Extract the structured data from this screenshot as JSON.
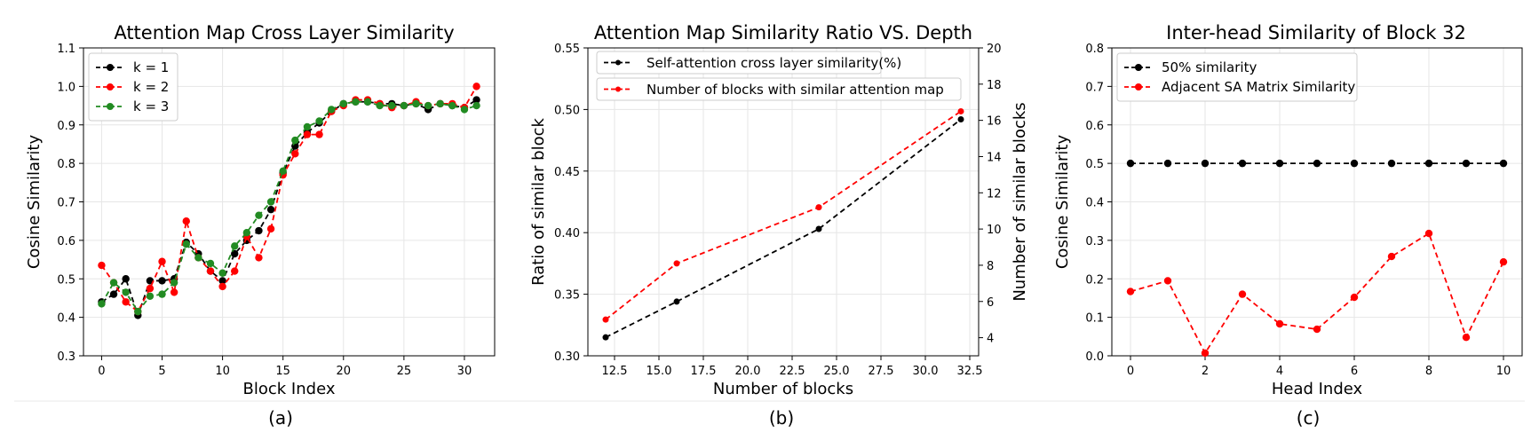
{
  "chart_data": [
    {
      "type": "line",
      "panel_label": "(a)",
      "title": "Attention Map Cross Layer Similarity",
      "xlabel": "Block Index",
      "ylabel": "Cosine Similarity",
      "xlim": [
        -1.5,
        32.5
      ],
      "ylim": [
        0.3,
        1.1
      ],
      "xticks": [
        0,
        5,
        10,
        15,
        20,
        25,
        30
      ],
      "yticks": [
        0.3,
        0.4,
        0.5,
        0.6,
        0.7,
        0.8,
        0.9,
        1.0,
        1.1
      ],
      "grid": true,
      "legend_position": "upper-left",
      "x": [
        0,
        1,
        2,
        3,
        4,
        5,
        6,
        7,
        8,
        9,
        10,
        11,
        12,
        13,
        14,
        15,
        16,
        17,
        18,
        19,
        20,
        21,
        22,
        23,
        24,
        25,
        26,
        27,
        28,
        29,
        30,
        31
      ],
      "series": [
        {
          "name": "k = 1",
          "color": "#000000",
          "values": [
            0.44,
            0.46,
            0.5,
            0.405,
            0.495,
            0.495,
            0.5,
            0.595,
            0.565,
            0.52,
            0.495,
            0.565,
            0.6,
            0.625,
            0.68,
            0.775,
            0.845,
            0.88,
            0.905,
            0.935,
            0.955,
            0.96,
            0.96,
            0.955,
            0.955,
            0.95,
            0.955,
            0.94,
            0.955,
            0.95,
            0.945,
            0.965
          ]
        },
        {
          "name": "k = 2",
          "color": "#ff0000",
          "values": [
            0.535,
            0.49,
            0.44,
            0.415,
            0.475,
            0.545,
            0.465,
            0.65,
            0.555,
            0.52,
            0.48,
            0.52,
            0.61,
            0.555,
            0.63,
            0.77,
            0.825,
            0.875,
            0.875,
            0.935,
            0.95,
            0.965,
            0.965,
            0.955,
            0.945,
            0.95,
            0.96,
            0.95,
            0.955,
            0.955,
            0.945,
            1.0
          ]
        },
        {
          "name": "k = 3",
          "color": "#228b22",
          "values": [
            0.435,
            0.49,
            0.465,
            0.415,
            0.455,
            0.46,
            0.49,
            0.59,
            0.555,
            0.54,
            0.515,
            0.585,
            0.62,
            0.665,
            0.7,
            0.78,
            0.86,
            0.895,
            0.91,
            0.94,
            0.955,
            0.96,
            0.96,
            0.95,
            0.95,
            0.95,
            0.955,
            0.95,
            0.955,
            0.95,
            0.94,
            0.95
          ]
        }
      ]
    },
    {
      "type": "line",
      "panel_label": "(b)",
      "title": "Attention Map Similarity Ratio VS. Depth",
      "xlabel": "Number of blocks",
      "ylabel": "Ratio of similar block",
      "y2label": "Number of similar blocks",
      "xlim": [
        11.0,
        33.0
      ],
      "ylim": [
        0.3,
        0.55
      ],
      "y2lim": [
        3,
        20
      ],
      "xticks": [
        12.5,
        15.0,
        17.5,
        20.0,
        22.5,
        25.0,
        27.5,
        30.0,
        32.5
      ],
      "yticks": [
        0.3,
        0.35,
        0.4,
        0.45,
        0.5,
        0.55
      ],
      "y2ticks": [
        4,
        6,
        8,
        10,
        12,
        14,
        16,
        18,
        20
      ],
      "grid": true,
      "legend_position": "top",
      "x": [
        12,
        16,
        24,
        32
      ],
      "series": [
        {
          "name": "Self-attention cross layer similarity(%)",
          "color": "#000000",
          "axis": "left",
          "values": [
            0.315,
            0.344,
            0.403,
            0.492
          ]
        },
        {
          "name": "Number of blocks with similar attention map",
          "color": "#ff0000",
          "axis": "right",
          "values": [
            5.0,
            8.1,
            11.2,
            16.5
          ]
        }
      ]
    },
    {
      "type": "line",
      "panel_label": "(c)",
      "title": "Inter-head Similarity of Block 32",
      "xlabel": "Head Index",
      "ylabel": "Cosine Similarity",
      "xlim": [
        -0.5,
        10.5
      ],
      "ylim": [
        0.0,
        0.8
      ],
      "xticks": [
        0,
        2,
        4,
        6,
        8,
        10
      ],
      "yticks": [
        0.0,
        0.1,
        0.2,
        0.3,
        0.4,
        0.5,
        0.6,
        0.7,
        0.8
      ],
      "grid": true,
      "legend_position": "upper-left",
      "x": [
        0,
        1,
        2,
        3,
        4,
        5,
        6,
        7,
        8,
        9,
        10
      ],
      "series": [
        {
          "name": "50% similarity",
          "color": "#000000",
          "values": [
            0.5,
            0.5,
            0.5,
            0.5,
            0.5,
            0.5,
            0.5,
            0.5,
            0.5,
            0.5,
            0.5
          ]
        },
        {
          "name": "Adjacent SA Matrix Similarity",
          "color": "#ff0000",
          "values": [
            0.167,
            0.195,
            0.007,
            0.16,
            0.083,
            0.069,
            0.152,
            0.258,
            0.318,
            0.048,
            0.244
          ]
        }
      ]
    }
  ]
}
